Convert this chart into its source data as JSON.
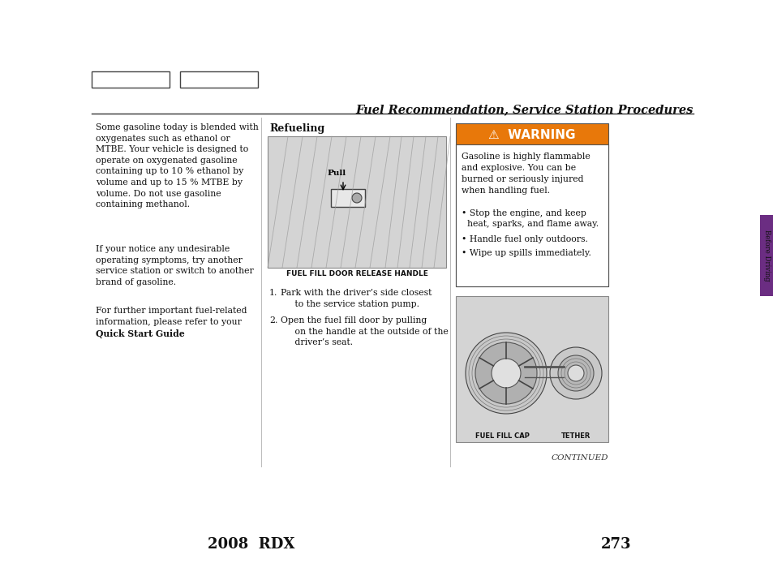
{
  "bg_color": "#ffffff",
  "title": "Fuel Recommendation, Service Station Procedures",
  "page_num": "273",
  "vehicle": "2008  RDX",
  "left_text_para1": "Some gasoline today is blended with\noxygenates such as ethanol or\nMTBE. Your vehicle is designed to\noperate on oxygenated gasoline\ncontaining up to 10 % ethanol by\nvolume and up to 15 % MTBE by\nvolume. Do not use gasoline\ncontaining methanol.",
  "left_text_para2": "If your notice any undesirable\noperating symptoms, try another\nservice station or switch to another\nbrand of gasoline.",
  "left_text_para3_pre": "For further important fuel-related\ninformation, please refer to your",
  "left_text_para3_bold": "Quick Start Guide",
  "left_text_para3_post": ".",
  "refueling_title": "Refueling",
  "fuel_fill_label": "FUEL FILL DOOR RELEASE HANDLE",
  "pull_label": "Pull",
  "step1_num": "1.",
  "step1_text": "Park with the driver’s side closest\n     to the service station pump.",
  "step2_num": "2.",
  "step2_text": "Open the fuel fill door by pulling\n     on the handle at the outside of the\n     driver’s seat.",
  "warning_title": "WARNING",
  "warning_body": "Gasoline is highly flammable\nand explosive. You can be\nburned or seriously injured\nwhen handling fuel.",
  "warning_bullets": [
    "Stop the engine, and keep\n  heat, sparks, and flame away.",
    "Handle fuel only outdoors.",
    "Wipe up spills immediately."
  ],
  "fuel_fill_cap_label": "FUEL FILL CAP",
  "tether_label": "TETHER",
  "continued_label": "CONTINUED",
  "tab_label": "Before Driving",
  "tab_color": "#6b2d82",
  "warning_bg": "#e8780a",
  "box_color": "#d8d8d8"
}
